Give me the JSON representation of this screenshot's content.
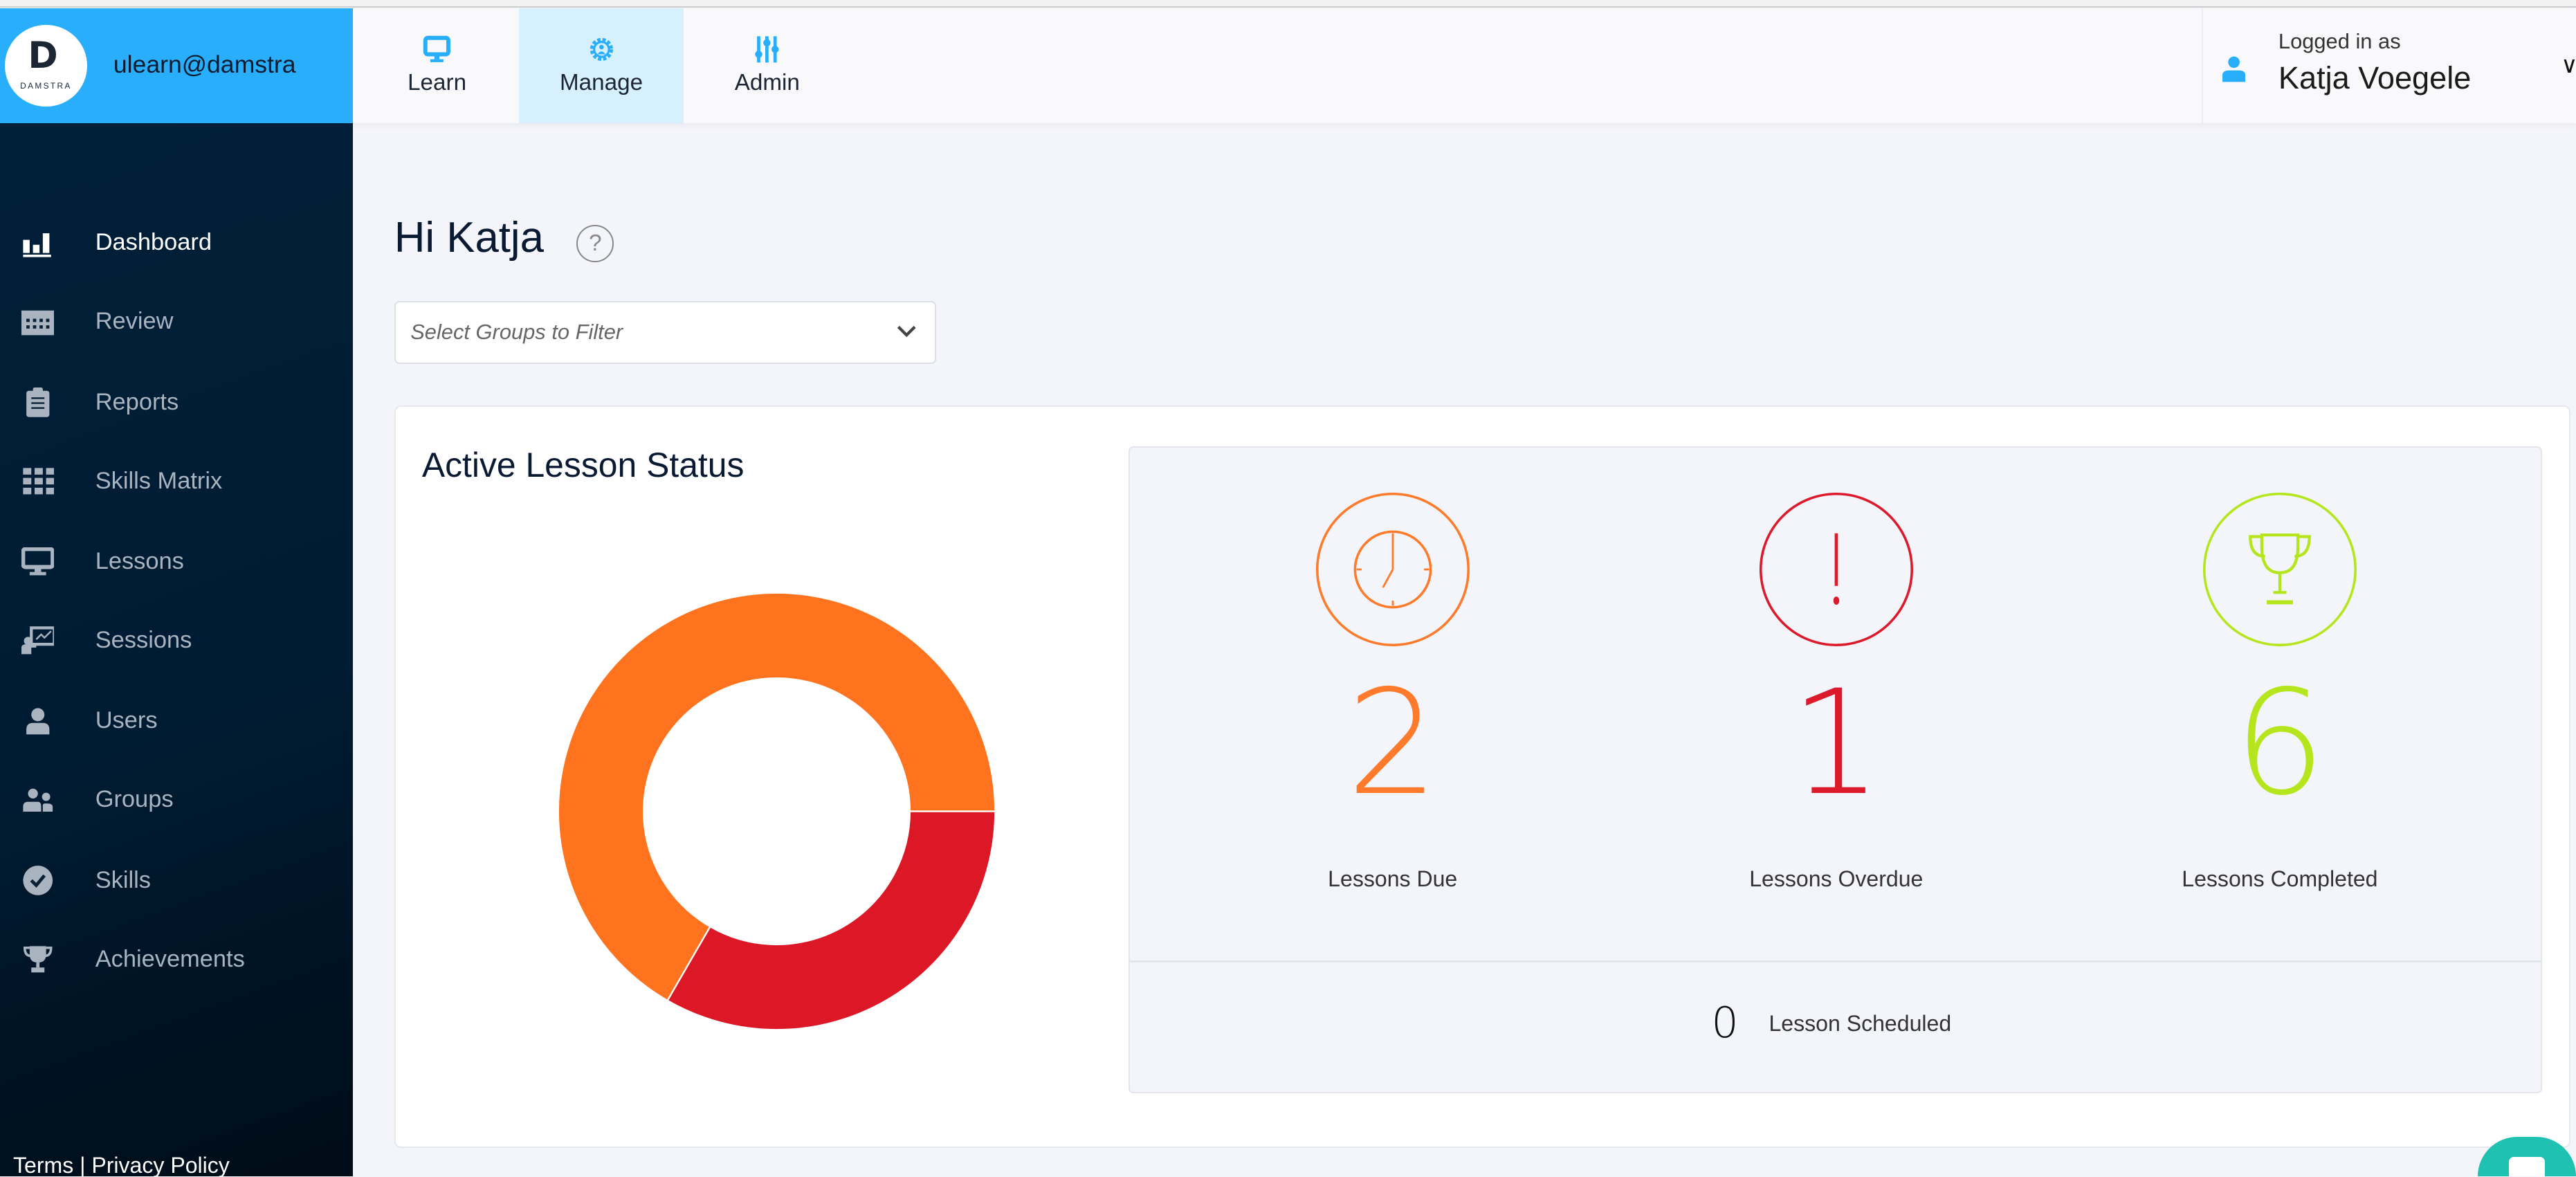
{
  "brand": {
    "account": "ulearn@damstra",
    "logo_text": "DAMSTRA",
    "color": "#29aefc"
  },
  "topnav": {
    "tabs": [
      {
        "label": "Learn",
        "icon": "monitor-icon",
        "active": false
      },
      {
        "label": "Manage",
        "icon": "gear-user-icon",
        "active": true
      },
      {
        "label": "Admin",
        "icon": "sliders-icon",
        "active": false
      }
    ]
  },
  "user": {
    "logged_in_label": "Logged in as",
    "name": "Katja Voegele"
  },
  "sidebar": {
    "items": [
      {
        "label": "Dashboard",
        "icon": "bar-chart-icon",
        "active": true
      },
      {
        "label": "Review",
        "icon": "calendar-icon"
      },
      {
        "label": "Reports",
        "icon": "clipboard-icon"
      },
      {
        "label": "Skills Matrix",
        "icon": "grid-check-icon"
      },
      {
        "label": "Lessons",
        "icon": "monitor-icon"
      },
      {
        "label": "Sessions",
        "icon": "presentation-icon"
      },
      {
        "label": "Users",
        "icon": "user-icon"
      },
      {
        "label": "Groups",
        "icon": "users-icon"
      },
      {
        "label": "Skills",
        "icon": "check-circle-icon"
      },
      {
        "label": "Achievements",
        "icon": "trophy-icon"
      }
    ],
    "footer": "Terms | Privacy Policy"
  },
  "main": {
    "greeting": "Hi Katja",
    "help": "?",
    "filter_placeholder": "Select Groups to Filter",
    "card_title": "Active Lesson Status",
    "stats": [
      {
        "value": "2",
        "label": "Lessons Due",
        "color": "#ff7a2a",
        "icon": "clock-icon"
      },
      {
        "value": "1",
        "label": "Lessons Overdue",
        "color": "#dc1a2b",
        "icon": "exclamation-icon"
      },
      {
        "value": "6",
        "label": "Lessons Completed",
        "color": "#b5e61d",
        "icon": "trophy-icon"
      }
    ],
    "scheduled": {
      "value": "0",
      "label": "Lesson Scheduled"
    }
  },
  "chart_data": {
    "type": "pie",
    "donut": true,
    "categories": [
      "Lessons Due",
      "Lessons Overdue"
    ],
    "values": [
      2,
      1
    ],
    "colors": [
      "#ff731e",
      "#dc1826"
    ]
  }
}
